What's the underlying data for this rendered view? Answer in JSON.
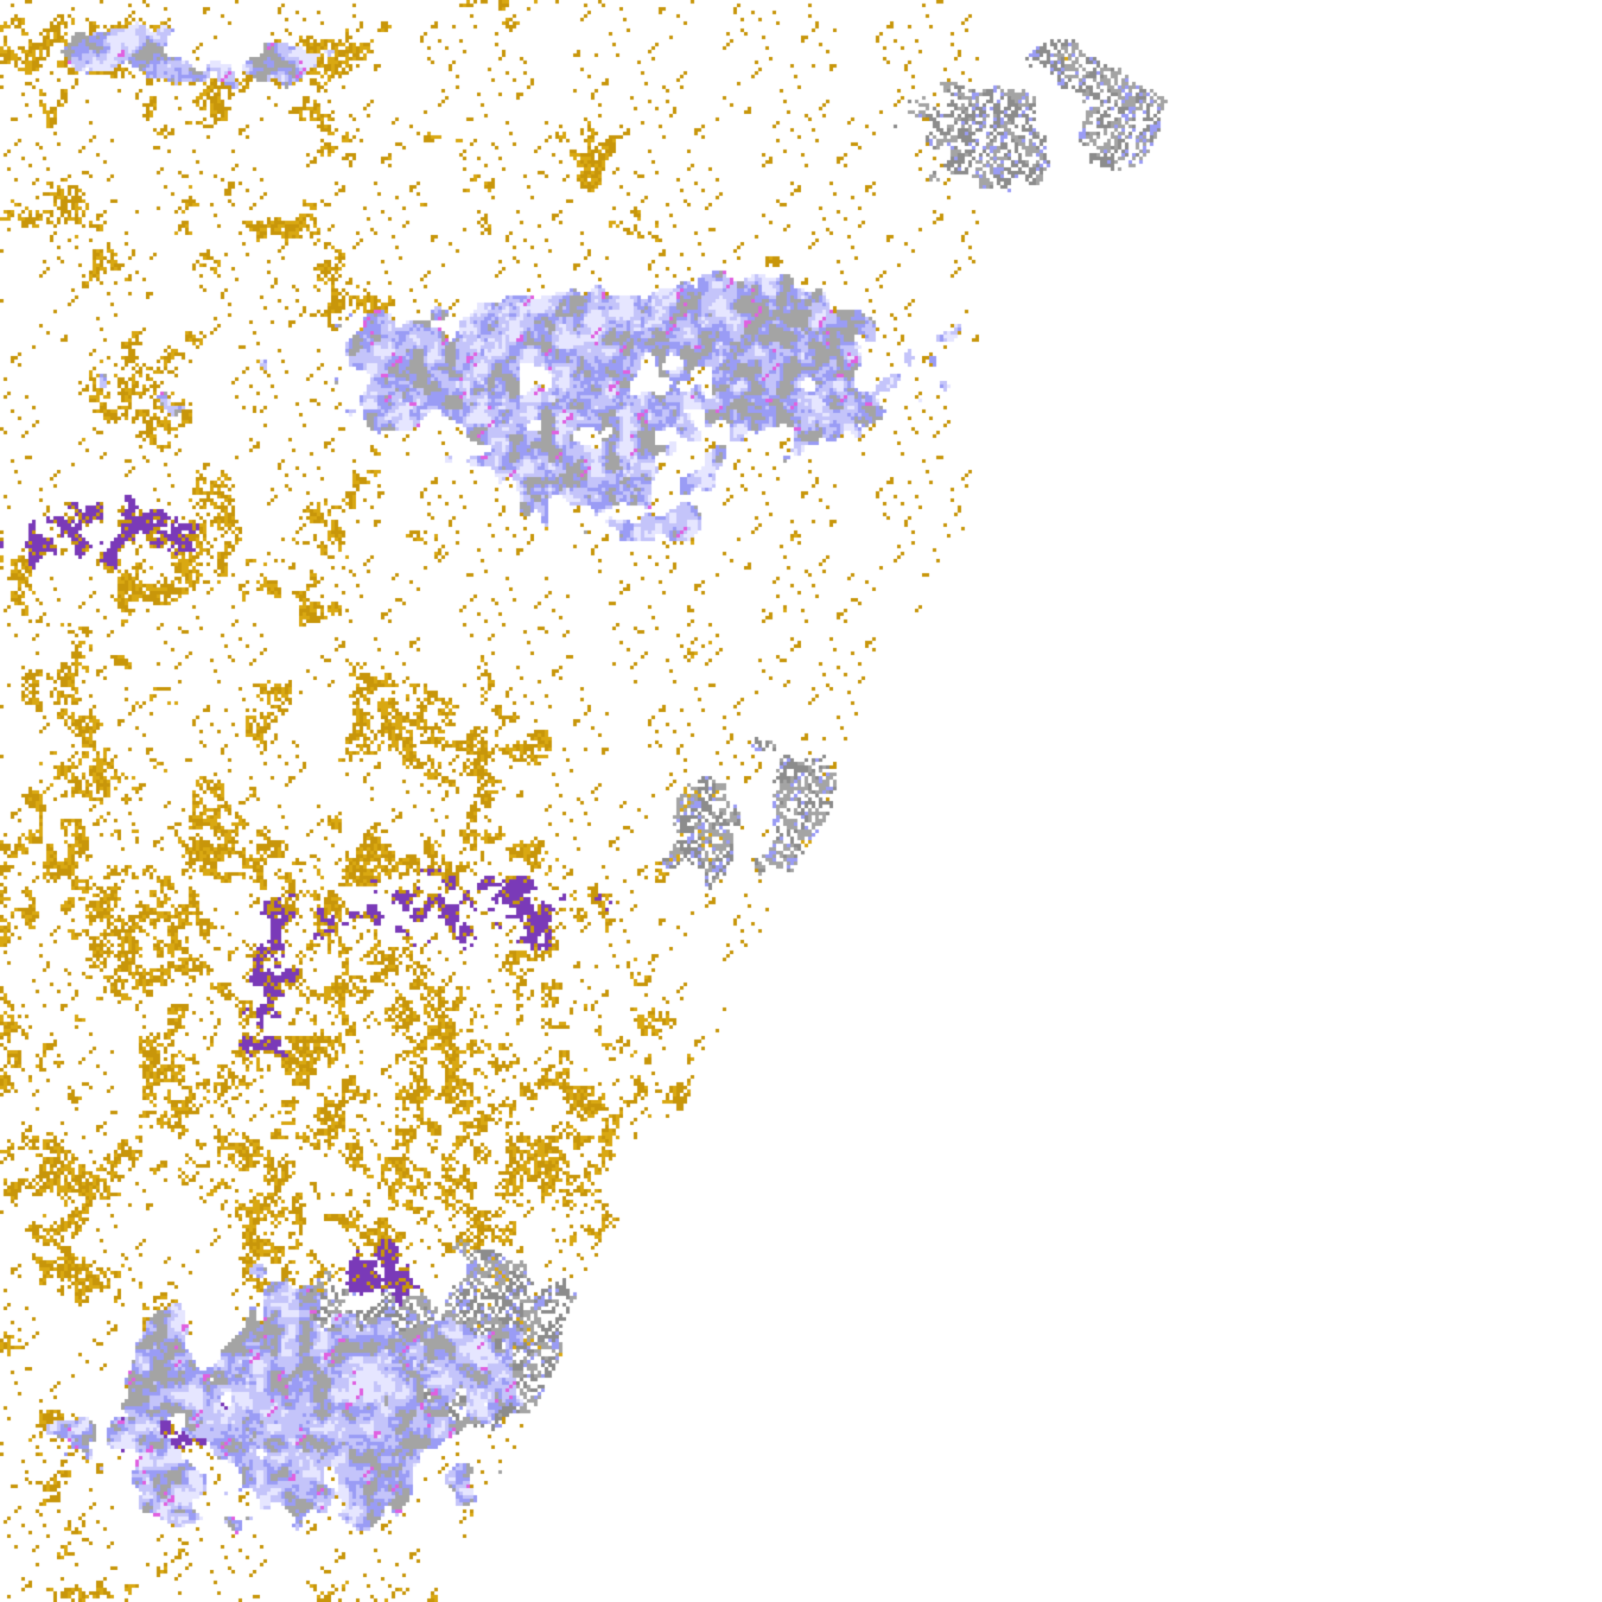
{
  "map": {
    "background": "#ffffff",
    "classes": {
      "clear": "#ffffff",
      "gold": "#c8960a",
      "gold_light": "#d9a812",
      "purple": "#7a3ab8",
      "lavender_light": "#e6e6ff",
      "lavender": "#c4c4fa",
      "periwinkle": "#9a9cf5",
      "gray": "#a4a4a4",
      "gray_dark": "#8c8c8c",
      "magenta": "#e060e0"
    }
  }
}
